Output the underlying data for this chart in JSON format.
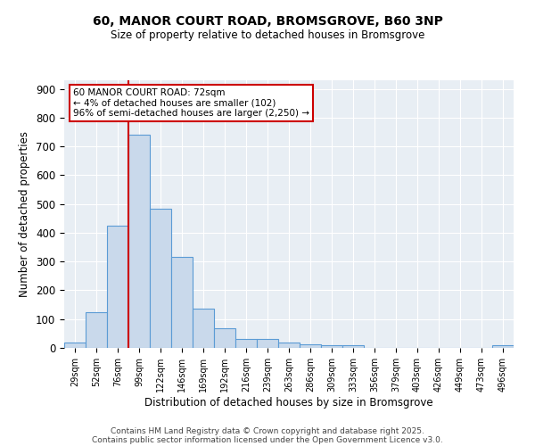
{
  "title1": "60, MANOR COURT ROAD, BROMSGROVE, B60 3NP",
  "title2": "Size of property relative to detached houses in Bromsgrove",
  "xlabel": "Distribution of detached houses by size in Bromsgrove",
  "ylabel": "Number of detached properties",
  "bin_labels": [
    "29sqm",
    "52sqm",
    "76sqm",
    "99sqm",
    "122sqm",
    "146sqm",
    "169sqm",
    "192sqm",
    "216sqm",
    "239sqm",
    "263sqm",
    "286sqm",
    "309sqm",
    "333sqm",
    "356sqm",
    "379sqm",
    "403sqm",
    "426sqm",
    "449sqm",
    "473sqm",
    "496sqm"
  ],
  "bar_values": [
    20,
    125,
    425,
    740,
    485,
    315,
    135,
    68,
    32,
    30,
    20,
    12,
    8,
    10,
    0,
    0,
    0,
    0,
    0,
    0,
    8
  ],
  "bar_color": "#c9d9eb",
  "bar_edge_color": "#5b9bd5",
  "red_line_x": 2.5,
  "annotation_text": "60 MANOR COURT ROAD: 72sqm\n← 4% of detached houses are smaller (102)\n96% of semi-detached houses are larger (2,250) →",
  "annotation_box_color": "#ffffff",
  "annotation_box_edge_color": "#cc0000",
  "red_line_color": "#cc0000",
  "ylim": [
    0,
    930
  ],
  "yticks": [
    0,
    100,
    200,
    300,
    400,
    500,
    600,
    700,
    800,
    900
  ],
  "background_color": "#e8eef4",
  "footer1": "Contains HM Land Registry data © Crown copyright and database right 2025.",
  "footer2": "Contains public sector information licensed under the Open Government Licence v3.0."
}
